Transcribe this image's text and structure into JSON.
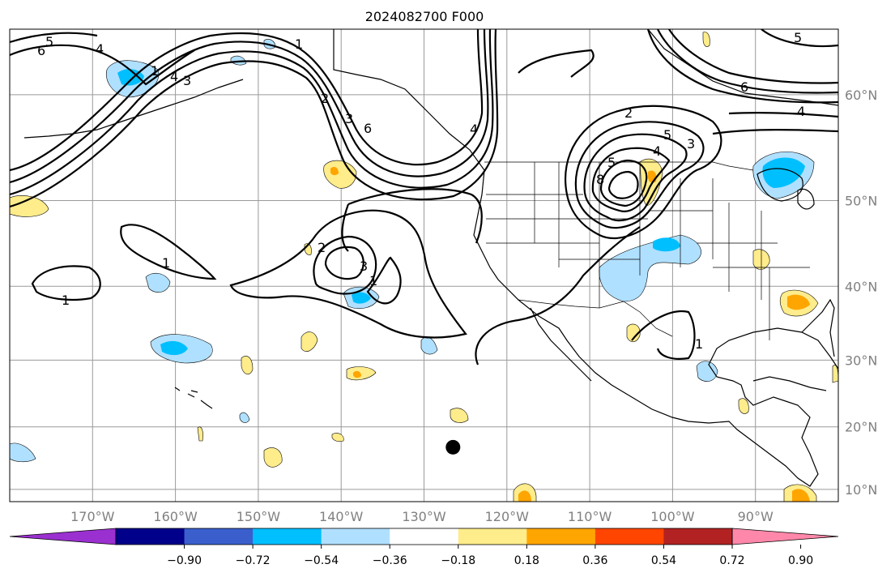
{
  "title": "2024082700 F000",
  "map": {
    "lon_labels": [
      "170°W",
      "160°W",
      "150°W",
      "140°W",
      "130°W",
      "120°W",
      "110°W",
      "100°W",
      "90°W"
    ],
    "lat_labels": [
      "60°N",
      "50°N",
      "40°N",
      "30°N",
      "20°N",
      "10°N"
    ],
    "lon_values": [
      -170,
      -160,
      -150,
      -140,
      -130,
      -120,
      -110,
      -100,
      -90
    ],
    "lat_values": [
      60,
      50,
      40,
      30,
      20,
      10
    ],
    "extent": {
      "lon_min": -180,
      "lon_max": -80,
      "lat_min": 8,
      "lat_max": 65
    },
    "storm_marker": {
      "lon": -126.5,
      "lat": 16.8
    }
  },
  "contour_labels": [
    "5",
    "6",
    "4",
    "1",
    "2",
    "3",
    "6",
    "1",
    "4",
    "2",
    "5",
    "4",
    "8",
    "5",
    "3",
    "6",
    "4",
    "5",
    "2",
    "3",
    "1",
    "1",
    "1",
    "3",
    "4",
    "1"
  ],
  "colorbar": {
    "tick_labels": [
      "−0.90",
      "−0.72",
      "−0.54",
      "−0.36",
      "−0.18",
      "0.18",
      "0.36",
      "0.54",
      "0.72",
      "0.90"
    ],
    "colors": [
      "#9b30d0",
      "#00008b",
      "#3a5fcd",
      "#00bfff",
      "#b0e0ff",
      "#ffffff",
      "#ffec8b",
      "#ffa500",
      "#ff4500",
      "#b22222",
      "#ff88aa"
    ]
  }
}
